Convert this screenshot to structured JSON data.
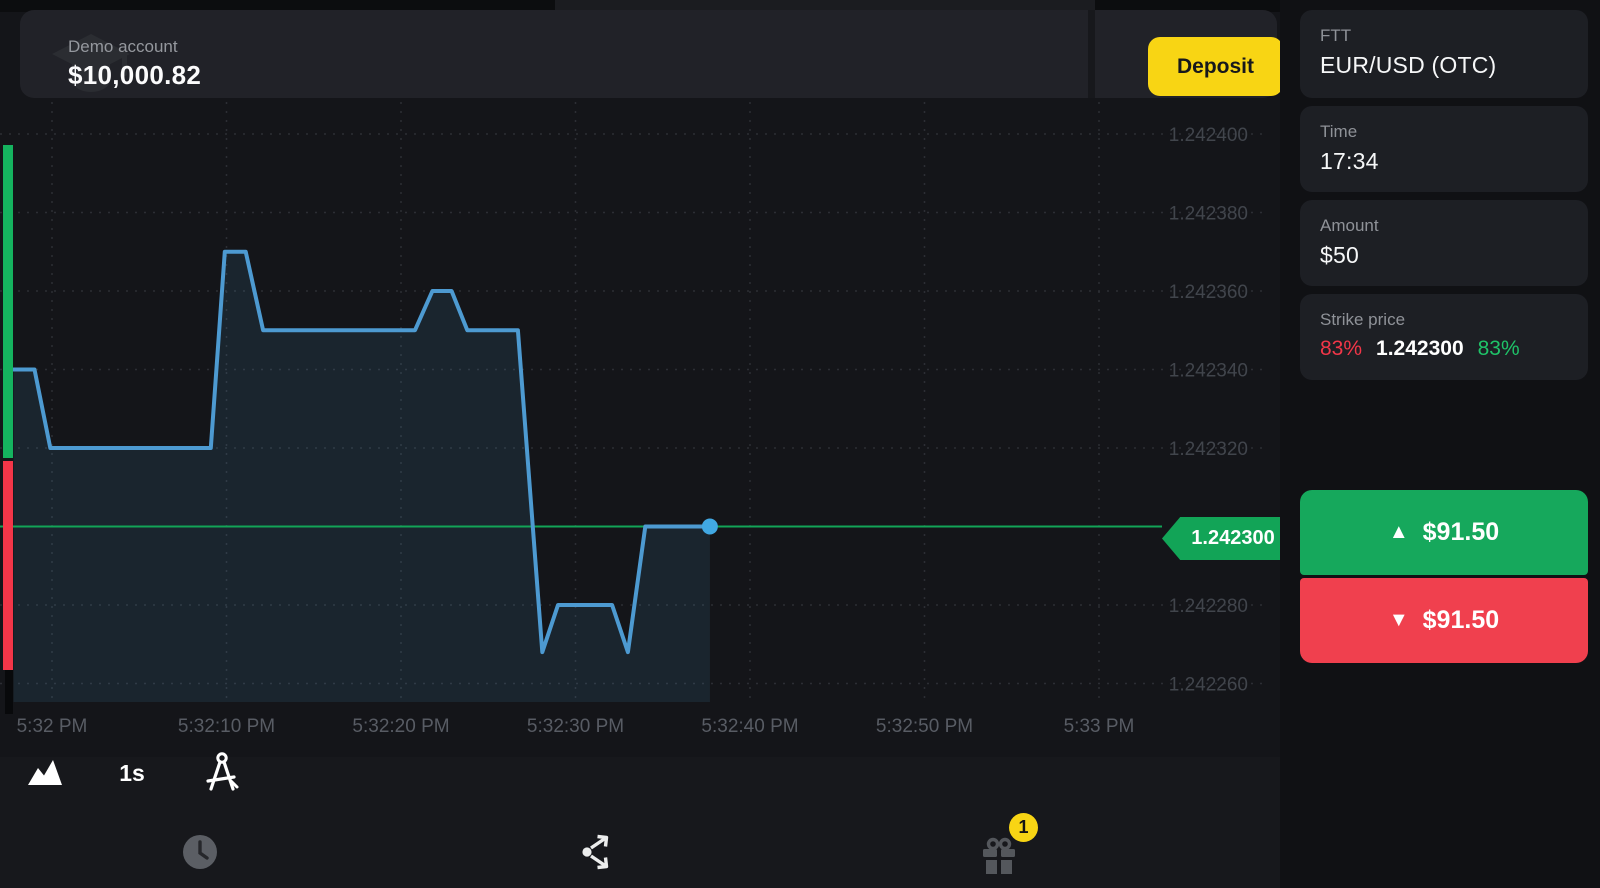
{
  "top_bar": {
    "account_type": "Demo account",
    "balance": "$10,000.82",
    "deposit_label": "Deposit"
  },
  "sidebar": {
    "instrument": {
      "type_label": "FTT",
      "name": "EUR/USD (OTC)"
    },
    "time": {
      "label": "Time",
      "value": "17:34"
    },
    "amount": {
      "label": "Amount",
      "value": "$50"
    },
    "strike": {
      "label": "Strike price",
      "down_percent": "83%",
      "price": "1.242300",
      "up_percent": "83%"
    },
    "buy_button": {
      "arrow": "▲",
      "label": "$91.50"
    },
    "sell_button": {
      "arrow": "▼",
      "label": "$91.50"
    }
  },
  "chart_toolbar": {
    "timeframe": "1s"
  },
  "strike_tag": {
    "value": "1.242300"
  },
  "nav": {
    "gift_badge": "1"
  },
  "colors": {
    "accent_green": "#12a457",
    "accent_red": "#f23648",
    "buy_green": "#16a85c",
    "sell_red": "#f0404e",
    "deposit_yellow": "#f8d514",
    "line_blue": "#4d9ad1",
    "dot_blue": "#41a8e3",
    "chart_fill": "rgba(77,154,209,0.12)"
  },
  "chart_data": {
    "type": "line",
    "title": "EUR/USD (OTC) tick price",
    "timeframe": "1s",
    "grid": true,
    "x_axis": "time (5:32 PM – 5:33 PM)",
    "y_axis": "price",
    "ylim": [
      1.24225,
      1.242405
    ],
    "x_ticks": [
      {
        "t": 0,
        "label": "5:32 PM"
      },
      {
        "t": 10,
        "label": "5:32:10 PM"
      },
      {
        "t": 20,
        "label": "5:32:20 PM"
      },
      {
        "t": 30,
        "label": "5:32:30 PM"
      },
      {
        "t": 40,
        "label": "5:32:40 PM"
      },
      {
        "t": 50,
        "label": "5:32:50 PM"
      },
      {
        "t": 60,
        "label": "5:33 PM"
      }
    ],
    "y_ticks": [
      {
        "v": 1.2424,
        "label": "1.242400"
      },
      {
        "v": 1.24238,
        "label": "1.242380"
      },
      {
        "v": 1.24236,
        "label": "1.242360"
      },
      {
        "v": 1.24234,
        "label": "1.242340"
      },
      {
        "v": 1.24232,
        "label": "1.242320"
      },
      {
        "v": 1.24228,
        "label": "1.242280"
      },
      {
        "v": 1.24226,
        "label": "1.242260"
      }
    ],
    "strike_price": 1.2423,
    "current_price": 1.2423,
    "points_t_seconds_after_5_32_00": true,
    "points": [
      [
        -2.2,
        1.24234
      ],
      [
        -1.0,
        1.24234
      ],
      [
        -0.1,
        1.24232
      ],
      [
        9.1,
        1.24232
      ],
      [
        9.9,
        1.24237
      ],
      [
        11.1,
        1.24237
      ],
      [
        12.1,
        1.24235
      ],
      [
        20.8,
        1.24235
      ],
      [
        21.8,
        1.24236
      ],
      [
        22.9,
        1.24236
      ],
      [
        23.8,
        1.24235
      ],
      [
        26.7,
        1.24235
      ],
      [
        28.1,
        1.242268
      ],
      [
        29.0,
        1.24228
      ],
      [
        32.1,
        1.24228
      ],
      [
        33.0,
        1.242268
      ],
      [
        34.0,
        1.2423
      ],
      [
        37.7,
        1.2423
      ]
    ]
  }
}
